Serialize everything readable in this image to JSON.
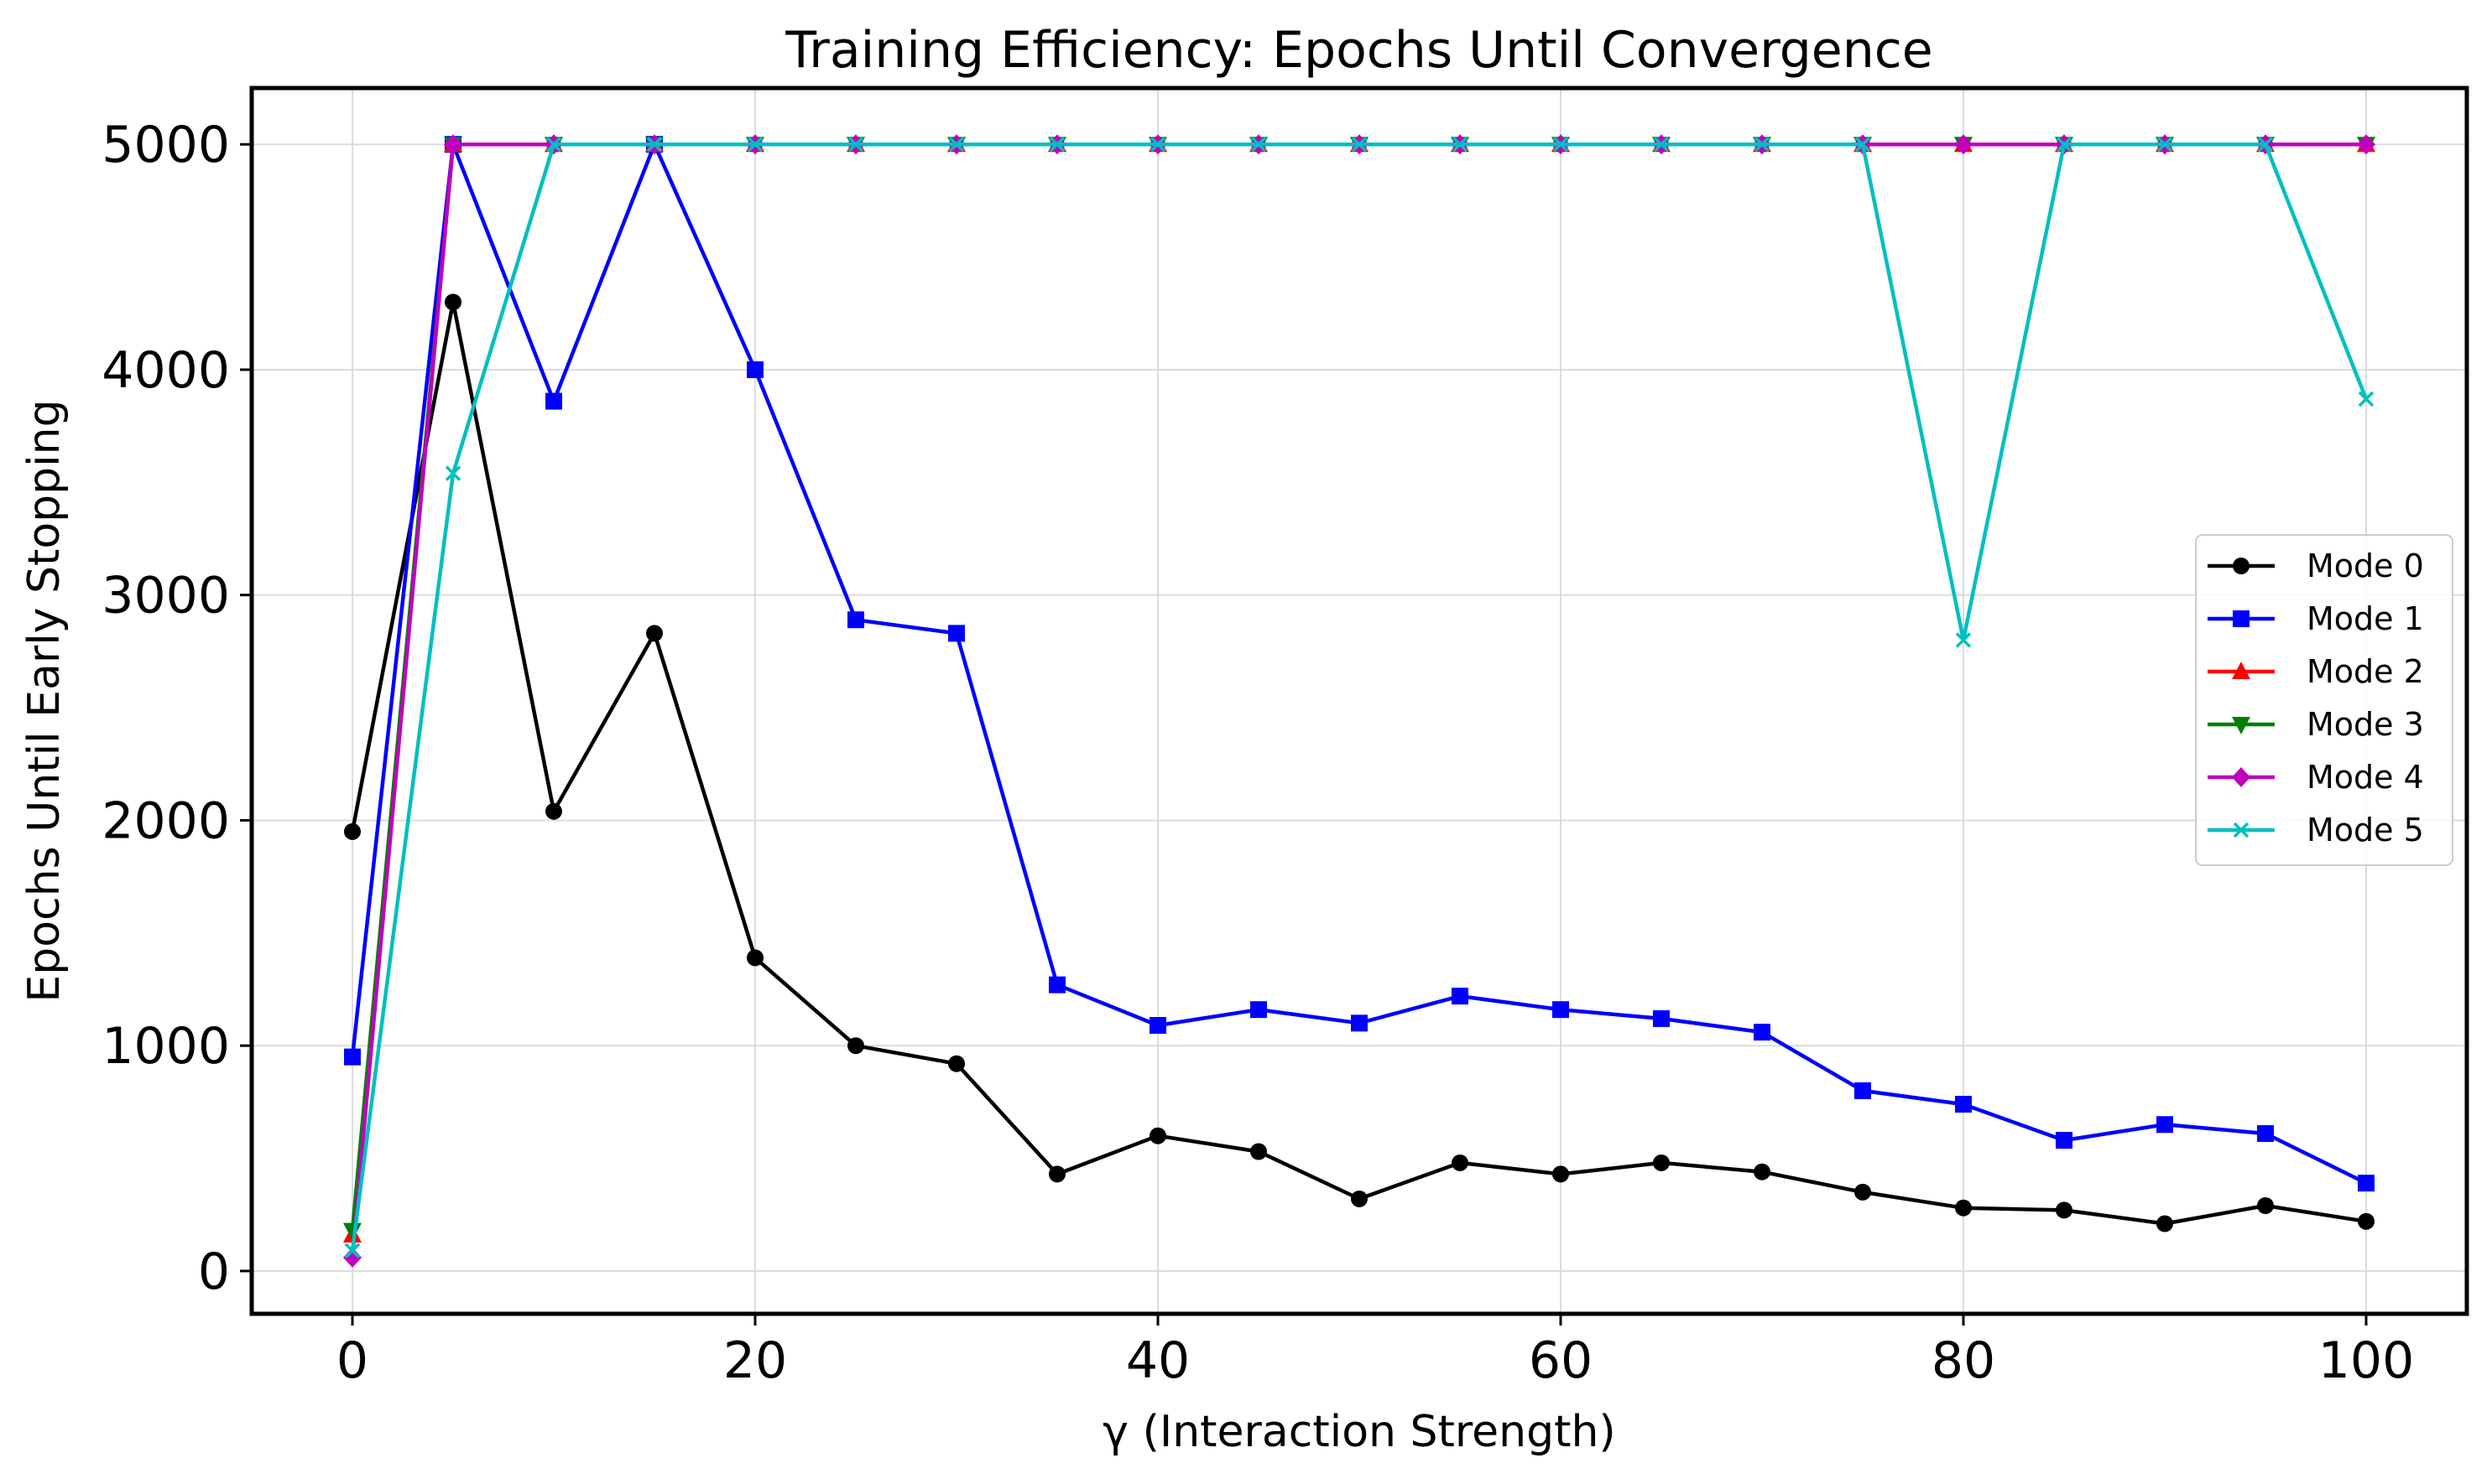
{
  "chart_data": {
    "type": "line",
    "title": "Training Efficiency: Epochs Until Convergence",
    "xlabel": "γ (Interaction Strength)",
    "ylabel": "Epochs Until Early Stopping",
    "xlim": [
      -5,
      105
    ],
    "ylim": [
      -190,
      5250
    ],
    "xticks": [
      0,
      20,
      40,
      60,
      80,
      100
    ],
    "yticks": [
      0,
      1000,
      2000,
      3000,
      4000,
      5000
    ],
    "grid": true,
    "legend_position": "center-right",
    "x": [
      0,
      5,
      10,
      15,
      20,
      25,
      30,
      35,
      40,
      45,
      50,
      55,
      60,
      65,
      70,
      75,
      80,
      85,
      90,
      95,
      100
    ],
    "series": [
      {
        "name": "Mode 0",
        "color": "#000000",
        "marker": "circle",
        "values": [
          1950,
          4300,
          2040,
          2830,
          1390,
          1000,
          920,
          430,
          600,
          530,
          320,
          480,
          430,
          480,
          440,
          350,
          280,
          270,
          210,
          290,
          220
        ]
      },
      {
        "name": "Mode 1",
        "color": "#0000ff",
        "marker": "square",
        "values": [
          950,
          5000,
          3860,
          5000,
          4000,
          2890,
          2830,
          1270,
          1090,
          1160,
          1100,
          1220,
          1160,
          1120,
          1060,
          800,
          740,
          580,
          650,
          610,
          390
        ]
      },
      {
        "name": "Mode 2",
        "color": "#ff0000",
        "marker": "triangle-up",
        "values": [
          160,
          5000,
          5000,
          5000,
          5000,
          5000,
          5000,
          5000,
          5000,
          5000,
          5000,
          5000,
          5000,
          5000,
          5000,
          5000,
          5000,
          5000,
          5000,
          5000,
          5000
        ]
      },
      {
        "name": "Mode 3",
        "color": "#008000",
        "marker": "triangle-down",
        "values": [
          180,
          5000,
          5000,
          5000,
          5000,
          5000,
          5000,
          5000,
          5000,
          5000,
          5000,
          5000,
          5000,
          5000,
          5000,
          5000,
          5000,
          5000,
          5000,
          5000,
          5000
        ]
      },
      {
        "name": "Mode 4",
        "color": "#bf00bf",
        "marker": "diamond",
        "values": [
          60,
          5000,
          5000,
          5000,
          5000,
          5000,
          5000,
          5000,
          5000,
          5000,
          5000,
          5000,
          5000,
          5000,
          5000,
          5000,
          5000,
          5000,
          5000,
          5000,
          5000
        ]
      },
      {
        "name": "Mode 5",
        "color": "#00bfbf",
        "marker": "x",
        "values": [
          90,
          3540,
          5000,
          5000,
          5000,
          5000,
          5000,
          5000,
          5000,
          5000,
          5000,
          5000,
          5000,
          5000,
          5000,
          5000,
          2800,
          5000,
          5000,
          5000,
          3870
        ]
      }
    ]
  }
}
